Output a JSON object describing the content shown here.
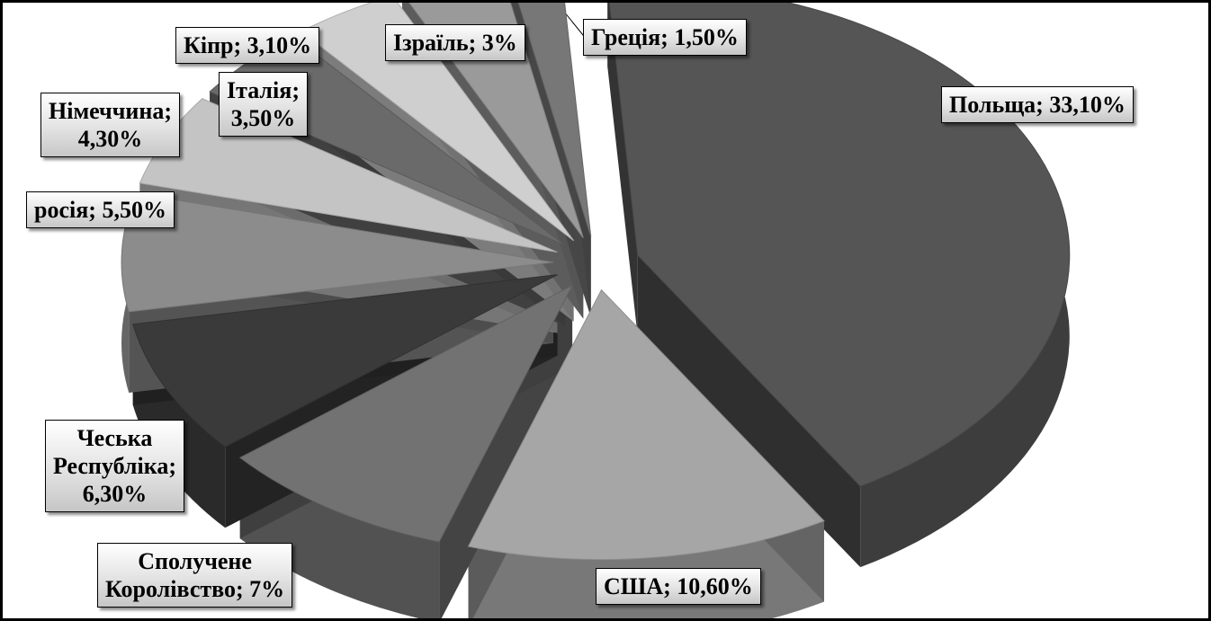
{
  "chart_data": {
    "type": "pie",
    "title": "",
    "three_d": true,
    "exploded": true,
    "slices": [
      {
        "label": "Польща",
        "value": 33.1,
        "data_label": "Польща; 33,10%",
        "color": "#555555"
      },
      {
        "label": "США",
        "value": 10.6,
        "data_label": "США; 10,60%",
        "color": "#a6a6a6"
      },
      {
        "label": "Сполучене Королівство",
        "value": 7.0,
        "data_label": "Сполучене Королівство; 7%",
        "color": "#727272"
      },
      {
        "label": "Чеська Республіка",
        "value": 6.3,
        "data_label": "Чеська Республіка; 6,30%",
        "color": "#3a3a3a"
      },
      {
        "label": "росія",
        "value": 5.5,
        "data_label": "росія; 5,50%",
        "color": "#8c8c8c"
      },
      {
        "label": "Німеччина",
        "value": 4.3,
        "data_label": "Німеччина; 4,30%",
        "color": "#c4c4c4"
      },
      {
        "label": "Італія",
        "value": 3.5,
        "data_label": "Італія; 3,50%",
        "color": "#6a6a6a"
      },
      {
        "label": "Кіпр",
        "value": 3.1,
        "data_label": "Кіпр; 3,10%",
        "color": "#cfcfcf"
      },
      {
        "label": "Ізраїль",
        "value": 3.0,
        "data_label": "Ізраїль; 3%",
        "color": "#9a9a9a"
      },
      {
        "label": "Греція",
        "value": 1.5,
        "data_label": "Греція; 1,50%",
        "color": "#777777"
      }
    ],
    "labels": {
      "poland": "Польща; 33,10%",
      "usa": "США; 10,60%",
      "uk_line1": "Сполучене",
      "uk_line2": "Королівство; 7%",
      "czech_line1": "Чеська",
      "czech_line2": "Республіка;",
      "czech_line3": "6,30%",
      "russia": "росія; 5,50%",
      "germany_line1": "Німеччина;",
      "germany_line2": "4,30%",
      "italy_line1": "Італія;",
      "italy_line2": "3,50%",
      "cyprus": "Кіпр; 3,10%",
      "israel": "Ізраїль; 3%",
      "greece": "Греція; 1,50%"
    }
  }
}
